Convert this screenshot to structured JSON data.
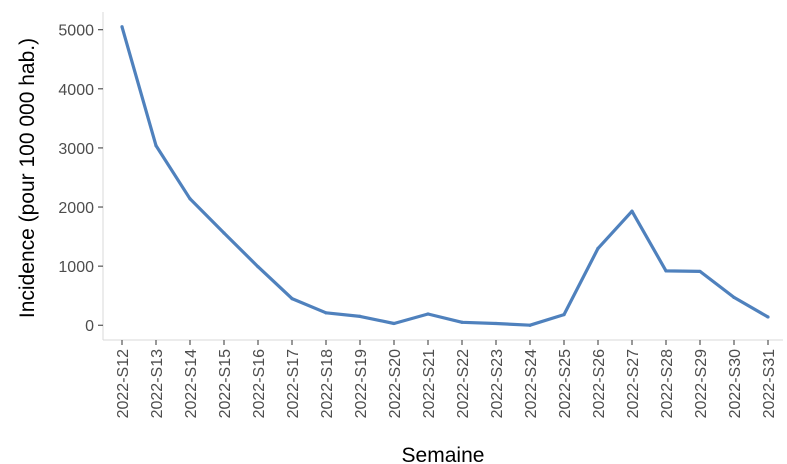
{
  "chart_data": {
    "type": "line",
    "title": "",
    "xlabel": "Semaine",
    "ylabel": "Incidence (pour 100 000 hab.)",
    "categories": [
      "2022-S12",
      "2022-S13",
      "2022-S14",
      "2022-S15",
      "2022-S16",
      "2022-S17",
      "2022-S18",
      "2022-S19",
      "2022-S20",
      "2022-S21",
      "2022-S22",
      "2022-S23",
      "2022-S24",
      "2022-S25",
      "2022-S26",
      "2022-S27",
      "2022-S28",
      "2022-S29",
      "2022-S30",
      "2022-S31"
    ],
    "series": [
      {
        "values": [
          5050,
          3040,
          2140,
          1560,
          990,
          450,
          210,
          150,
          30,
          190,
          50,
          30,
          0,
          180,
          1300,
          1930,
          920,
          910,
          470,
          140
        ]
      }
    ],
    "ylim": [
      -250,
      5300
    ],
    "yticks": [
      0,
      1000,
      2000,
      3000,
      4000,
      5000
    ],
    "grid": false,
    "legend": "none",
    "colors": {
      "line": "#4f81bd",
      "axis": "#d9d9d9",
      "tick_text": "#4d4d4d",
      "title_text": "#000000"
    }
  }
}
